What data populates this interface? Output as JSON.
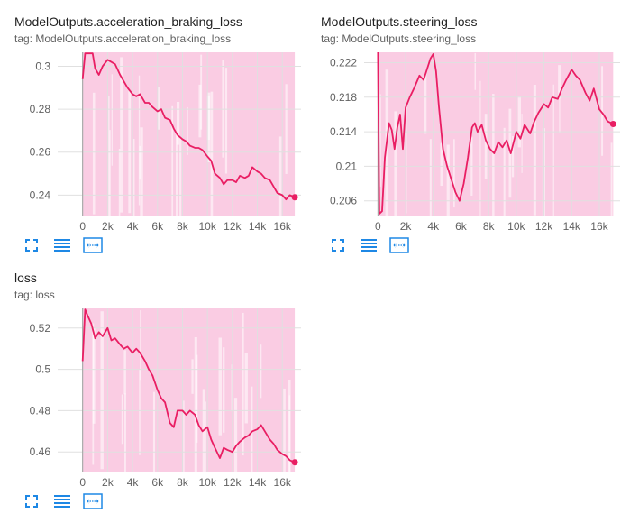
{
  "colors": {
    "line": "#e91e63",
    "band": "#f8bbd9",
    "grid": "#e0e0e0",
    "tool": "#1e88e5"
  },
  "toolbar_icons": [
    "fullscreen-icon",
    "list-icon",
    "fit-domain-icon"
  ],
  "chart_data": [
    {
      "type": "line",
      "title": "ModelOutputs.acceleration_braking_loss",
      "tag": "tag: ModelOutputs.acceleration_braking_loss",
      "xticks": [
        0,
        2000,
        4000,
        6000,
        8000,
        10000,
        12000,
        14000,
        16000
      ],
      "xtick_labels": [
        "0",
        "2k",
        "4k",
        "6k",
        "8k",
        "10k",
        "12k",
        "14k",
        "16k"
      ],
      "yticks": [
        0.24,
        0.26,
        0.28,
        0.3
      ],
      "ytick_labels": [
        "0.24",
        "0.26",
        "0.28",
        "0.3"
      ],
      "xlim": [
        -2000,
        17500
      ],
      "ylim": [
        0.2305,
        0.3065
      ],
      "band": [
        [
          0,
          0.2305,
          0.3065
        ],
        [
          300,
          0.2305,
          0.3065
        ],
        [
          17000,
          0.2305,
          0.3065
        ]
      ],
      "series": [
        {
          "x": [
            0,
            200,
            500,
            800,
            1000,
            1300,
            1600,
            2000,
            2300,
            2600,
            3000,
            3300,
            3600,
            4000,
            4300,
            4600,
            5000,
            5300,
            5600,
            6000,
            6300,
            6600,
            7000,
            7300,
            7600,
            8000,
            8300,
            8600,
            9000,
            9300,
            9600,
            10000,
            10300,
            10600,
            11000,
            11300,
            11600,
            12000,
            12300,
            12600,
            13000,
            13300,
            13600,
            14000,
            14300,
            14600,
            15000,
            15300,
            15600,
            16000,
            16300,
            16600,
            17000
          ],
          "y": [
            0.294,
            0.306,
            0.306,
            0.306,
            0.299,
            0.296,
            0.3,
            0.303,
            0.302,
            0.301,
            0.296,
            0.293,
            0.29,
            0.287,
            0.286,
            0.287,
            0.283,
            0.283,
            0.281,
            0.279,
            0.28,
            0.276,
            0.275,
            0.271,
            0.268,
            0.266,
            0.265,
            0.263,
            0.262,
            0.262,
            0.261,
            0.258,
            0.256,
            0.25,
            0.248,
            0.245,
            0.247,
            0.247,
            0.246,
            0.249,
            0.248,
            0.249,
            0.253,
            0.251,
            0.25,
            0.248,
            0.247,
            0.244,
            0.241,
            0.24,
            0.238,
            0.24,
            0.239
          ]
        }
      ]
    },
    {
      "type": "line",
      "title": "ModelOutputs.steering_loss",
      "tag": "tag: ModelOutputs.steering_loss",
      "xticks": [
        0,
        2000,
        4000,
        6000,
        8000,
        10000,
        12000,
        14000,
        16000
      ],
      "xtick_labels": [
        "0",
        "2k",
        "4k",
        "6k",
        "8k",
        "10k",
        "12k",
        "14k",
        "16k"
      ],
      "yticks": [
        0.206,
        0.21,
        0.214,
        0.218,
        0.222
      ],
      "ytick_labels": [
        "0.206",
        "0.21",
        "0.214",
        "0.218",
        "0.222"
      ],
      "xlim": [
        -1000,
        17500
      ],
      "ylim": [
        0.2043,
        0.2232
      ],
      "band": [
        [
          0,
          0.2043,
          0.2232
        ],
        [
          300,
          0.2043,
          0.2232
        ],
        [
          17000,
          0.2043,
          0.2232
        ]
      ],
      "series": [
        {
          "x": [
            0,
            100,
            300,
            500,
            800,
            1000,
            1200,
            1400,
            1600,
            1800,
            2000,
            2300,
            2600,
            3000,
            3300,
            3600,
            3800,
            4000,
            4200,
            4400,
            4700,
            5000,
            5300,
            5600,
            5900,
            6200,
            6500,
            6800,
            7000,
            7200,
            7500,
            7800,
            8100,
            8400,
            8700,
            9000,
            9300,
            9600,
            10000,
            10300,
            10600,
            11000,
            11300,
            11600,
            12000,
            12300,
            12600,
            13000,
            13300,
            13600,
            14000,
            14300,
            14600,
            15000,
            15300,
            15600,
            16000,
            16300,
            16600,
            17000
          ],
          "y": [
            0.2232,
            0.2045,
            0.2048,
            0.211,
            0.215,
            0.2142,
            0.212,
            0.2145,
            0.216,
            0.212,
            0.2168,
            0.218,
            0.219,
            0.2205,
            0.22,
            0.2215,
            0.2225,
            0.223,
            0.221,
            0.217,
            0.212,
            0.21,
            0.2085,
            0.207,
            0.206,
            0.208,
            0.211,
            0.2145,
            0.215,
            0.214,
            0.2148,
            0.213,
            0.212,
            0.2115,
            0.2128,
            0.2122,
            0.213,
            0.2115,
            0.214,
            0.2132,
            0.2148,
            0.2138,
            0.2152,
            0.2162,
            0.2172,
            0.2168,
            0.218,
            0.2178,
            0.219,
            0.22,
            0.2212,
            0.2205,
            0.22,
            0.2185,
            0.2176,
            0.219,
            0.2166,
            0.216,
            0.2152,
            0.2149
          ]
        }
      ]
    },
    {
      "type": "line",
      "title": "loss",
      "tag": "tag: loss",
      "xticks": [
        0,
        2000,
        4000,
        6000,
        8000,
        10000,
        12000,
        14000,
        16000
      ],
      "xtick_labels": [
        "0",
        "2k",
        "4k",
        "6k",
        "8k",
        "10k",
        "12k",
        "14k",
        "16k"
      ],
      "yticks": [
        0.46,
        0.48,
        0.5,
        0.52
      ],
      "ytick_labels": [
        "0.46",
        "0.48",
        "0.5",
        "0.52"
      ],
      "xlim": [
        -2000,
        17500
      ],
      "ylim": [
        0.4505,
        0.5295
      ],
      "band": [
        [
          0,
          0.4505,
          0.5295
        ],
        [
          300,
          0.4505,
          0.5295
        ],
        [
          17000,
          0.4505,
          0.5295
        ]
      ],
      "series": [
        {
          "x": [
            0,
            200,
            400,
            700,
            1000,
            1300,
            1600,
            2000,
            2300,
            2600,
            3000,
            3300,
            3600,
            4000,
            4300,
            4600,
            5000,
            5300,
            5600,
            6000,
            6300,
            6600,
            7000,
            7300,
            7600,
            8000,
            8300,
            8600,
            9000,
            9300,
            9600,
            10000,
            10300,
            10600,
            11000,
            11300,
            11600,
            12000,
            12300,
            12600,
            13000,
            13300,
            13600,
            14000,
            14300,
            14600,
            15000,
            15300,
            15600,
            16000,
            16300,
            16600,
            17000
          ],
          "y": [
            0.504,
            0.529,
            0.526,
            0.522,
            0.515,
            0.518,
            0.516,
            0.52,
            0.514,
            0.515,
            0.512,
            0.51,
            0.511,
            0.508,
            0.51,
            0.508,
            0.504,
            0.5,
            0.497,
            0.49,
            0.486,
            0.484,
            0.474,
            0.472,
            0.48,
            0.48,
            0.478,
            0.48,
            0.478,
            0.473,
            0.47,
            0.472,
            0.466,
            0.462,
            0.457,
            0.462,
            0.461,
            0.46,
            0.463,
            0.465,
            0.467,
            0.468,
            0.47,
            0.471,
            0.473,
            0.47,
            0.466,
            0.464,
            0.461,
            0.459,
            0.458,
            0.456,
            0.455
          ]
        }
      ]
    }
  ]
}
